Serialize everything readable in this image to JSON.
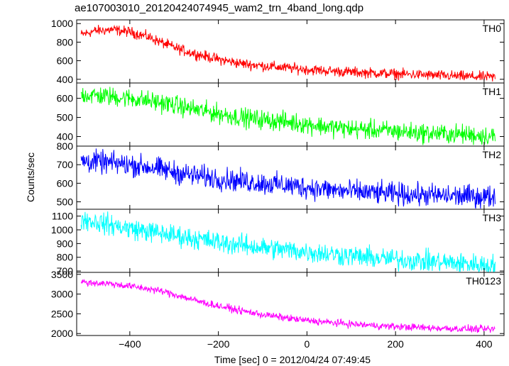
{
  "chart_data": {
    "type": "line",
    "title": "ae107003010_20120424074945_wam2_trn_4band_long.qdp",
    "xlabel": "Time [sec] 0 = 2012/04/24 07:49:45",
    "ylabel": "Counts/sec",
    "xlim": [
      -520,
      445
    ],
    "x_ticks": [
      -400,
      -200,
      0,
      200,
      400
    ],
    "x_tick_labels": [
      "−400",
      "−200",
      "0",
      "200",
      "400"
    ],
    "panels": [
      {
        "name": "TH0",
        "color": "#ff0000",
        "ylim": [
          360,
          1040
        ],
        "y_ticks": [
          400,
          600,
          800,
          1000
        ],
        "y_tick_labels": [
          "400",
          "600",
          "800",
          "1000"
        ],
        "noise": 28,
        "trend": [
          [
            -510,
            880
          ],
          [
            -480,
            920
          ],
          [
            -440,
            935
          ],
          [
            -400,
            910
          ],
          [
            -360,
            860
          ],
          [
            -320,
            780
          ],
          [
            -280,
            710
          ],
          [
            -240,
            660
          ],
          [
            -200,
            615
          ],
          [
            -150,
            570
          ],
          [
            -100,
            545
          ],
          [
            -50,
            525
          ],
          [
            0,
            505
          ],
          [
            50,
            490
          ],
          [
            100,
            478
          ],
          [
            150,
            468
          ],
          [
            200,
            458
          ],
          [
            250,
            450
          ],
          [
            300,
            440
          ],
          [
            350,
            432
          ],
          [
            400,
            425
          ],
          [
            425,
            422
          ]
        ]
      },
      {
        "name": "TH1",
        "color": "#00ff00",
        "ylim": [
          350,
          680
        ],
        "y_ticks": [
          400,
          500,
          600
        ],
        "y_tick_labels": [
          "400",
          "500",
          "600"
        ],
        "noise": 25,
        "trend": [
          [
            -510,
            620
          ],
          [
            -450,
            610
          ],
          [
            -400,
            600
          ],
          [
            -350,
            585
          ],
          [
            -300,
            565
          ],
          [
            -250,
            540
          ],
          [
            -200,
            520
          ],
          [
            -150,
            500
          ],
          [
            -100,
            488
          ],
          [
            -50,
            478
          ],
          [
            0,
            465
          ],
          [
            50,
            450
          ],
          [
            100,
            440
          ],
          [
            150,
            435
          ],
          [
            200,
            428
          ],
          [
            250,
            420
          ],
          [
            300,
            415
          ],
          [
            350,
            412
          ],
          [
            400,
            405
          ],
          [
            425,
            400
          ]
        ]
      },
      {
        "name": "TH2",
        "color": "#0000ff",
        "ylim": [
          460,
          800
        ],
        "y_ticks": [
          500,
          600,
          700,
          800
        ],
        "y_tick_labels": [
          "500",
          "600",
          "700",
          "800"
        ],
        "noise": 30,
        "trend": [
          [
            -510,
            720
          ],
          [
            -450,
            710
          ],
          [
            -400,
            700
          ],
          [
            -350,
            685
          ],
          [
            -300,
            660
          ],
          [
            -250,
            640
          ],
          [
            -200,
            625
          ],
          [
            -150,
            612
          ],
          [
            -100,
            600
          ],
          [
            -50,
            590
          ],
          [
            0,
            578
          ],
          [
            50,
            565
          ],
          [
            100,
            555
          ],
          [
            150,
            548
          ],
          [
            200,
            542
          ],
          [
            250,
            538
          ],
          [
            300,
            533
          ],
          [
            350,
            530
          ],
          [
            400,
            528
          ],
          [
            425,
            527
          ]
        ]
      },
      {
        "name": "TH3",
        "color": "#00ffff",
        "ylim": [
          690,
          1150
        ],
        "y_ticks": [
          700,
          800,
          900,
          1000,
          1100
        ],
        "y_tick_labels": [
          "700",
          "800",
          "900",
          "1000",
          "1100"
        ],
        "noise": 38,
        "trend": [
          [
            -510,
            1080
          ],
          [
            -450,
            1040
          ],
          [
            -400,
            1010
          ],
          [
            -350,
            985
          ],
          [
            -300,
            960
          ],
          [
            -250,
            935
          ],
          [
            -200,
            910
          ],
          [
            -150,
            890
          ],
          [
            -100,
            870
          ],
          [
            -50,
            855
          ],
          [
            0,
            840
          ],
          [
            50,
            825
          ],
          [
            100,
            810
          ],
          [
            150,
            795
          ],
          [
            200,
            785
          ],
          [
            250,
            775
          ],
          [
            300,
            765
          ],
          [
            350,
            755
          ],
          [
            400,
            745
          ],
          [
            425,
            742
          ]
        ]
      },
      {
        "name": "TH0123",
        "color": "#ff00ff",
        "ylim": [
          1950,
          3550
        ],
        "y_ticks": [
          2000,
          2500,
          3000,
          3500
        ],
        "y_tick_labels": [
          "2000",
          "2500",
          "3000",
          "3500"
        ],
        "noise": 45,
        "trend": [
          [
            -510,
            3300
          ],
          [
            -450,
            3270
          ],
          [
            -400,
            3200
          ],
          [
            -350,
            3120
          ],
          [
            -320,
            3050
          ],
          [
            -280,
            2930
          ],
          [
            -240,
            2800
          ],
          [
            -200,
            2700
          ],
          [
            -150,
            2580
          ],
          [
            -100,
            2480
          ],
          [
            -50,
            2400
          ],
          [
            0,
            2330
          ],
          [
            50,
            2280
          ],
          [
            100,
            2240
          ],
          [
            150,
            2205
          ],
          [
            200,
            2175
          ],
          [
            250,
            2155
          ],
          [
            300,
            2135
          ],
          [
            350,
            2120
          ],
          [
            400,
            2110
          ],
          [
            425,
            2105
          ]
        ]
      }
    ]
  }
}
